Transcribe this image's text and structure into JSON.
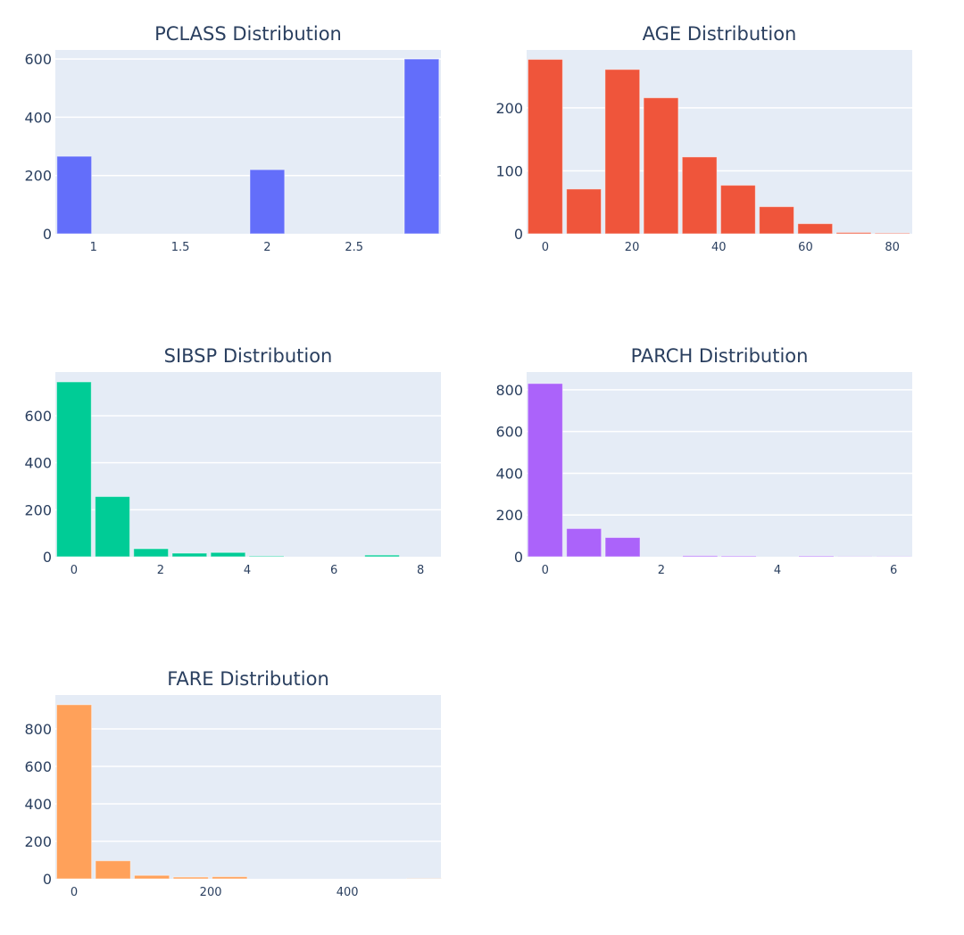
{
  "figure": {
    "plot_bg": "#e5ecf6",
    "grid_color": "#ffffff",
    "text_color": "#2a3f5f"
  },
  "chart_data": [
    {
      "type": "bar",
      "title": "PCLASS Distribution",
      "color": "#636efa",
      "x": [
        0.889,
        1.111,
        1.333,
        1.556,
        1.778,
        2.0,
        2.222,
        2.444,
        2.667,
        2.889
      ],
      "bar_width": 0.222,
      "values": [
        266,
        0,
        0,
        0,
        0,
        220,
        0,
        0,
        0,
        600
      ],
      "xlim": [
        0.78,
        3.0
      ],
      "ylim": [
        0,
        631
      ],
      "xticks": [
        1,
        1.5,
        2,
        2.5
      ],
      "xtick_labels": [
        "1",
        "1.5",
        "2",
        "2.5"
      ],
      "yticks": [
        0,
        200,
        400,
        600
      ],
      "ytick_labels": [
        "0",
        "200",
        "400",
        "600"
      ],
      "xlabel": "",
      "ylabel": "",
      "grid": true
    },
    {
      "type": "bar",
      "title": "AGE Distribution",
      "color": "#ef553b",
      "x": [
        0,
        8.89,
        17.78,
        26.67,
        35.56,
        44.44,
        53.33,
        62.22,
        71.11,
        80
      ],
      "bar_width": 8.89,
      "values": [
        277,
        71,
        261,
        216,
        122,
        77,
        43,
        16,
        2,
        1
      ],
      "xlim": [
        -4.3,
        84.6
      ],
      "ylim": [
        0,
        292
      ],
      "xticks": [
        0,
        20,
        40,
        60,
        80
      ],
      "xtick_labels": [
        "0",
        "20",
        "40",
        "60",
        "80"
      ],
      "yticks": [
        0,
        100,
        200
      ],
      "ytick_labels": [
        "0",
        "100",
        "200"
      ],
      "xlabel": "",
      "ylabel": "",
      "grid": true
    },
    {
      "type": "bar",
      "title": "SIBSP Distribution",
      "color": "#00cc96",
      "x": [
        0,
        0.889,
        1.778,
        2.667,
        3.556,
        4.444,
        5.333,
        6.222,
        7.111,
        8.0
      ],
      "bar_width": 0.889,
      "values": [
        744,
        256,
        34,
        15,
        18,
        3,
        0,
        0,
        7,
        0
      ],
      "xlim": [
        -0.43,
        8.47
      ],
      "ylim": [
        0,
        786
      ],
      "xticks": [
        0,
        2,
        4,
        6,
        8
      ],
      "xtick_labels": [
        "0",
        "2",
        "4",
        "6",
        "8"
      ],
      "yticks": [
        0,
        200,
        400,
        600
      ],
      "ytick_labels": [
        "0",
        "200",
        "400",
        "600"
      ],
      "xlabel": "",
      "ylabel": "",
      "grid": true
    },
    {
      "type": "bar",
      "title": "PARCH Distribution",
      "color": "#ab63fa",
      "x": [
        0,
        0.667,
        1.333,
        2.0,
        2.667,
        3.333,
        4.0,
        4.667,
        5.333,
        6.0
      ],
      "bar_width": 0.667,
      "values": [
        830,
        135,
        92,
        0,
        5,
        4,
        0,
        4,
        1,
        1
      ],
      "xlim": [
        -0.32,
        6.32
      ],
      "ylim": [
        0,
        885
      ],
      "xticks": [
        0,
        2,
        4,
        6
      ],
      "xtick_labels": [
        "0",
        "2",
        "4",
        "6"
      ],
      "yticks": [
        0,
        200,
        400,
        600,
        800
      ],
      "ytick_labels": [
        "0",
        "200",
        "400",
        "600",
        "800"
      ],
      "xlabel": "",
      "ylabel": "",
      "grid": true
    },
    {
      "type": "bar",
      "title": "FARE Distribution",
      "color": "#ffa15a",
      "x": [
        0,
        56.9,
        113.8,
        170.8,
        227.7,
        284.6,
        341.5,
        398.4,
        455.3,
        512.3
      ],
      "bar_width": 56.9,
      "values": [
        929,
        96,
        18,
        9,
        11,
        0,
        0,
        0,
        0,
        1
      ],
      "xlim": [
        -27.5,
        537
      ],
      "ylim": [
        0,
        981
      ],
      "xticks": [
        0,
        200,
        400
      ],
      "xtick_labels": [
        "0",
        "200",
        "400"
      ],
      "yticks": [
        0,
        200,
        400,
        600,
        800
      ],
      "ytick_labels": [
        "0",
        "200",
        "400",
        "600",
        "800"
      ],
      "xlabel": "",
      "ylabel": "",
      "grid": true
    }
  ]
}
